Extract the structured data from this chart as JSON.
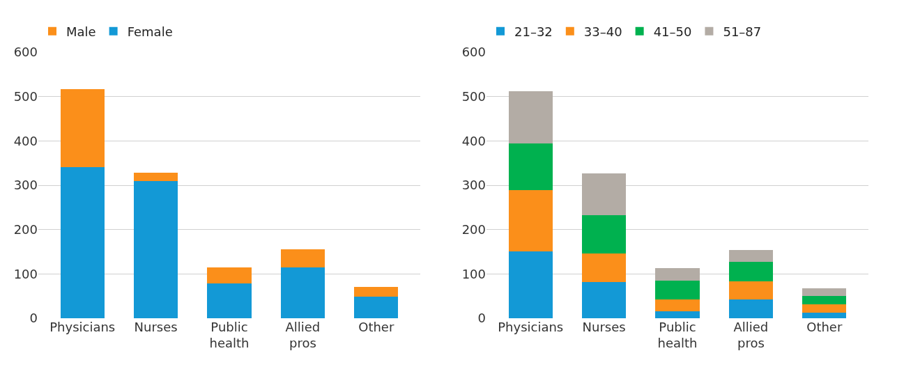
{
  "chart_data": [
    {
      "type": "bar",
      "stacked": true,
      "categories": [
        "Physicians",
        "Nurses",
        "Public health",
        "Allied pros",
        "Other"
      ],
      "series": [
        {
          "name": "Female",
          "color": "#1399d6",
          "values": [
            341,
            310,
            79,
            115,
            48
          ]
        },
        {
          "name": "Male",
          "color": "#fb8f1a",
          "values": [
            176,
            18,
            36,
            41,
            22
          ]
        }
      ],
      "ylim": [
        0,
        600
      ],
      "yticks": [
        0,
        100,
        200,
        300,
        400,
        500,
        600
      ],
      "grid": "y",
      "legend": "top left"
    },
    {
      "type": "bar",
      "stacked": true,
      "categories": [
        "Physicians",
        "Nurses",
        "Public health",
        "Allied pros",
        "Other"
      ],
      "series": [
        {
          "name": "21–32",
          "color": "#1399d6",
          "values": [
            151,
            81,
            15,
            43,
            12
          ]
        },
        {
          "name": "33–40",
          "color": "#fb8f1a",
          "values": [
            138,
            65,
            28,
            41,
            20
          ]
        },
        {
          "name": "41–50",
          "color": "#00b14f",
          "values": [
            106,
            86,
            42,
            43,
            18
          ]
        },
        {
          "name": "51–87",
          "color": "#b3aca5",
          "values": [
            117,
            95,
            28,
            27,
            18
          ]
        }
      ],
      "ylim": [
        0,
        600
      ],
      "yticks": [
        0,
        100,
        200,
        300,
        400,
        500,
        600
      ],
      "grid": "y",
      "legend": "top left"
    }
  ]
}
